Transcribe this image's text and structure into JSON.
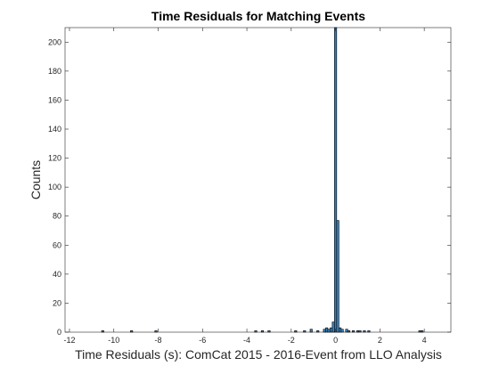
{
  "chart_data": {
    "type": "bar",
    "title": "Time Residuals for Matching Events",
    "xlabel": "Time Residuals (s): ComCat 2015 - 2016-Event from LLO Analysis",
    "ylabel": "Counts",
    "xlim": [
      -12.2,
      5.2
    ],
    "ylim": [
      0,
      210
    ],
    "xticks": [
      -12,
      -10,
      -8,
      -6,
      -4,
      -2,
      0,
      2,
      4
    ],
    "yticks": [
      0,
      20,
      40,
      60,
      80,
      100,
      120,
      140,
      160,
      180,
      200
    ],
    "xtick_labels": [
      "-12",
      "-10",
      "-8",
      "-6",
      "-4",
      "-2",
      "0",
      "2",
      "4"
    ],
    "ytick_labels": [
      "0",
      "20",
      "40",
      "60",
      "80",
      "100",
      "120",
      "140",
      "160",
      "180",
      "200"
    ],
    "bin_width": 0.1,
    "grid": false,
    "bar_color": "#3a7fb5",
    "bins": [
      {
        "x": -10.5,
        "y": 1
      },
      {
        "x": -9.2,
        "y": 1
      },
      {
        "x": -8.1,
        "y": 1
      },
      {
        "x": -3.6,
        "y": 1
      },
      {
        "x": -3.3,
        "y": 1
      },
      {
        "x": -3.0,
        "y": 1
      },
      {
        "x": -1.8,
        "y": 1
      },
      {
        "x": -1.4,
        "y": 1
      },
      {
        "x": -1.1,
        "y": 2
      },
      {
        "x": -0.8,
        "y": 1
      },
      {
        "x": -0.5,
        "y": 2
      },
      {
        "x": -0.4,
        "y": 3
      },
      {
        "x": -0.3,
        "y": 2
      },
      {
        "x": -0.2,
        "y": 3
      },
      {
        "x": -0.1,
        "y": 7
      },
      {
        "x": 0.0,
        "y": 210
      },
      {
        "x": 0.1,
        "y": 77
      },
      {
        "x": 0.2,
        "y": 3
      },
      {
        "x": 0.3,
        "y": 2
      },
      {
        "x": 0.5,
        "y": 2
      },
      {
        "x": 0.6,
        "y": 1
      },
      {
        "x": 0.8,
        "y": 1
      },
      {
        "x": 1.0,
        "y": 1
      },
      {
        "x": 1.1,
        "y": 1
      },
      {
        "x": 1.3,
        "y": 1
      },
      {
        "x": 1.5,
        "y": 1
      },
      {
        "x": 3.8,
        "y": 1
      },
      {
        "x": 3.9,
        "y": 1
      }
    ]
  }
}
